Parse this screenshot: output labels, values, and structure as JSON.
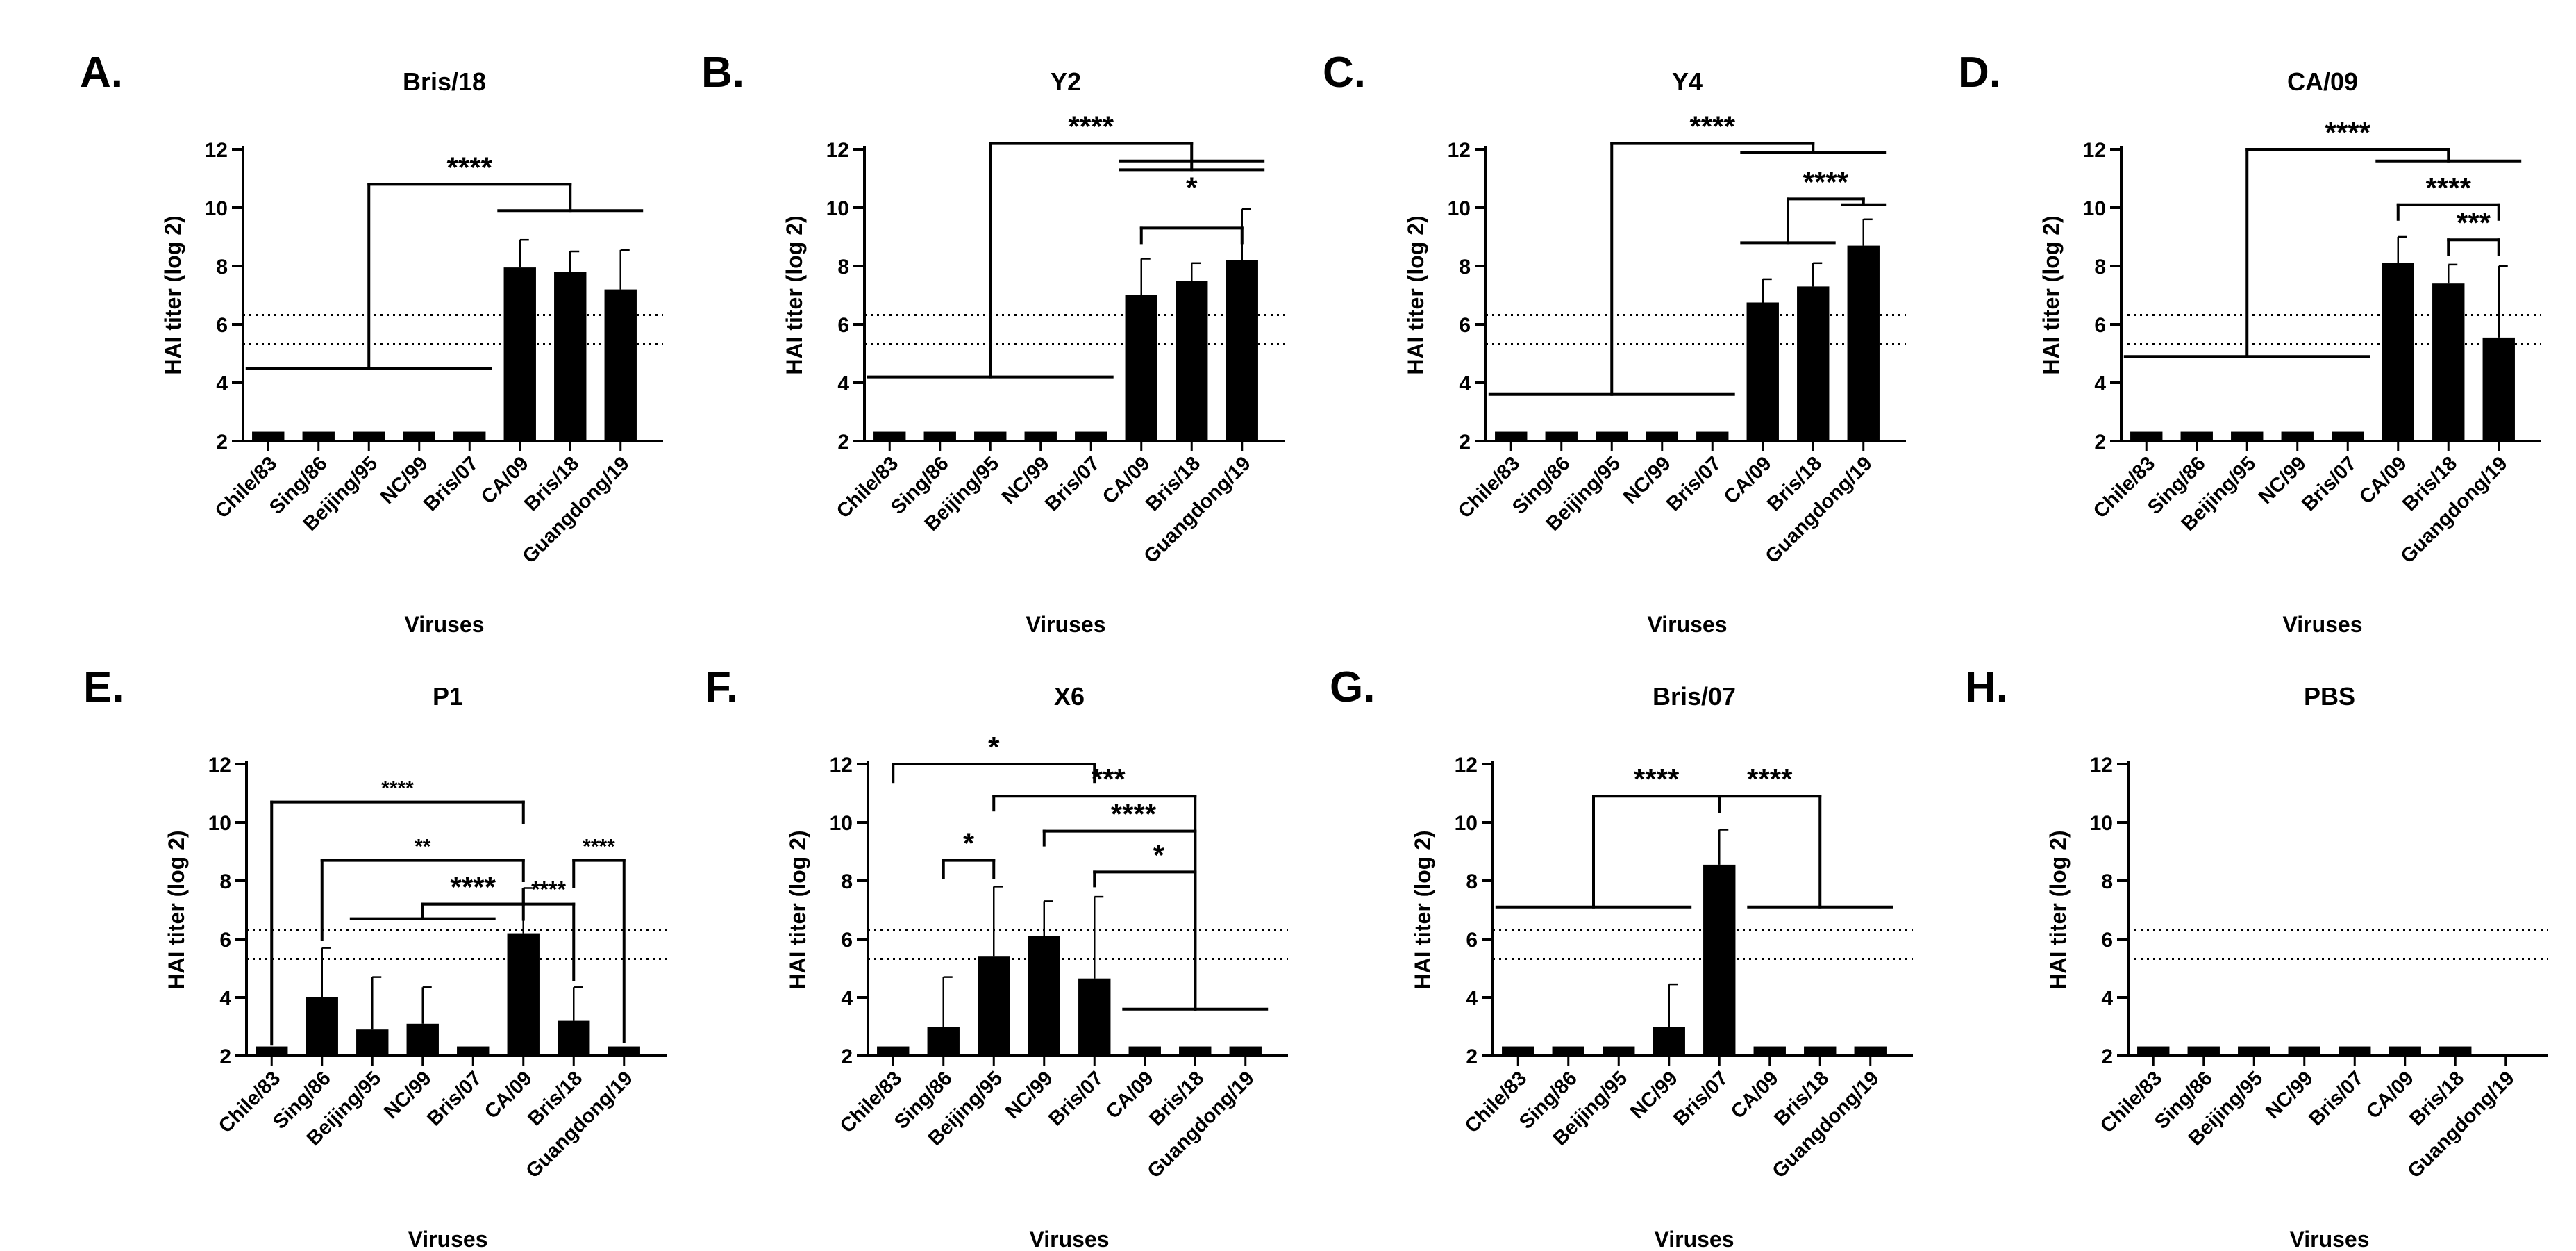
{
  "figure": {
    "threshold_lines_log2": [
      5.32,
      6.32
    ]
  },
  "chart_data": [
    {
      "type": "bar",
      "panel_label": "A.",
      "title": "Bris/18",
      "xlabel": "Viruses",
      "ylabel": "HAI titer (log 2)",
      "ylim": [
        2,
        12
      ],
      "yticks": [
        2,
        4,
        6,
        8,
        10,
        12
      ],
      "categories": [
        "Chile/83",
        "Sing/86",
        "Beijing/95",
        "NC/99",
        "Bris/07",
        "CA/09",
        "Bris/18",
        "Guangdong/19"
      ],
      "values": [
        2.32,
        2.32,
        2.32,
        2.32,
        2.32,
        7.95,
        7.8,
        7.2
      ],
      "errors": [
        0,
        0,
        0,
        0,
        0,
        0.95,
        0.7,
        1.35
      ],
      "significance": [
        {
          "type": "fork",
          "groups": [
            [
              0,
              1,
              2,
              3,
              4
            ],
            [
              5,
              6,
              7
            ]
          ],
          "group_levels": [
            4.5,
            9.9
          ],
          "top": 10.8,
          "label": "****",
          "label_size": 42
        }
      ]
    },
    {
      "type": "bar",
      "panel_label": "B.",
      "title": "Y2",
      "xlabel": "Viruses",
      "ylabel": "HAI titer (log 2)",
      "ylim": [
        2,
        12
      ],
      "yticks": [
        2,
        4,
        6,
        8,
        10,
        12
      ],
      "categories": [
        "Chile/83",
        "Sing/86",
        "Beijing/95",
        "NC/99",
        "Bris/07",
        "CA/09",
        "Bris/18",
        "Guangdong/19"
      ],
      "values": [
        2.32,
        2.32,
        2.32,
        2.32,
        2.32,
        7.0,
        7.5,
        8.2
      ],
      "errors": [
        0,
        0,
        0,
        0,
        0,
        1.25,
        0.6,
        1.75
      ],
      "significance": [
        {
          "type": "fork",
          "groups": [
            [
              0,
              1,
              2,
              3,
              4
            ],
            [
              5,
              6,
              7
            ]
          ],
          "group_levels": [
            4.2,
            11.3
          ],
          "top": 12.2,
          "label": "****",
          "label_size": 42
        },
        {
          "type": "span",
          "from": 5,
          "to": 7,
          "level": 11.6,
          "label": "*",
          "label_size": 42
        },
        {
          "type": "bracket",
          "from": 5,
          "to": 7,
          "level": 9.3,
          "label": "",
          "label_size": 40
        }
      ]
    },
    {
      "type": "bar",
      "panel_label": "C.",
      "title": "Y4",
      "xlabel": "Viruses",
      "ylabel": "HAI titer (log 2)",
      "ylim": [
        2,
        12
      ],
      "yticks": [
        2,
        4,
        6,
        8,
        10,
        12
      ],
      "categories": [
        "Chile/83",
        "Sing/86",
        "Beijing/95",
        "NC/99",
        "Bris/07",
        "CA/09",
        "Bris/18",
        "Guangdong/19"
      ],
      "values": [
        2.32,
        2.32,
        2.32,
        2.32,
        2.32,
        6.75,
        7.3,
        8.7
      ],
      "errors": [
        0,
        0,
        0,
        0,
        0,
        0.8,
        0.8,
        0.9
      ],
      "significance": [
        {
          "type": "fork",
          "groups": [
            [
              0,
              1,
              2,
              3,
              4
            ],
            [
              5,
              6,
              7
            ]
          ],
          "group_levels": [
            3.6,
            11.9
          ],
          "top": 12.2,
          "label": "****",
          "label_size": 42
        },
        {
          "type": "fork",
          "groups": [
            [
              5,
              6
            ],
            [
              7
            ]
          ],
          "group_levels": [
            8.8,
            10.1
          ],
          "top": 10.3,
          "label": "****",
          "label_size": 42
        }
      ]
    },
    {
      "type": "bar",
      "panel_label": "D.",
      "title": "CA/09",
      "xlabel": "Viruses",
      "ylabel": "HAI titer (log 2)",
      "ylim": [
        2,
        12
      ],
      "yticks": [
        2,
        4,
        6,
        8,
        10,
        12
      ],
      "categories": [
        "Chile/83",
        "Sing/86",
        "Beijing/95",
        "NC/99",
        "Bris/07",
        "CA/09",
        "Bris/18",
        "Guangdong/19"
      ],
      "values": [
        2.32,
        2.32,
        2.32,
        2.32,
        2.32,
        8.1,
        7.4,
        5.55
      ],
      "errors": [
        0,
        0,
        0,
        0,
        0,
        0.9,
        0.65,
        2.45
      ],
      "significance": [
        {
          "type": "fork",
          "groups": [
            [
              0,
              1,
              2,
              3,
              4
            ],
            [
              5,
              6,
              7
            ]
          ],
          "group_levels": [
            4.9,
            11.6
          ],
          "top": 12.0,
          "label": "****",
          "label_size": 42
        },
        {
          "type": "bracket",
          "from": 5,
          "to": 7,
          "level": 10.1,
          "label": "****",
          "label_size": 42
        },
        {
          "type": "bracket",
          "from": 6,
          "to": 7,
          "level": 8.9,
          "label": "***",
          "label_size": 42
        }
      ]
    },
    {
      "type": "bar",
      "panel_label": "E.",
      "title": "P1",
      "xlabel": "Viruses",
      "ylabel": "HAI titer (log 2)",
      "ylim": [
        2,
        12
      ],
      "yticks": [
        2,
        4,
        6,
        8,
        10,
        12
      ],
      "categories": [
        "Chile/83",
        "Sing/86",
        "Beijing/95",
        "NC/99",
        "Bris/07",
        "CA/09",
        "Bris/18",
        "Guangdong/19"
      ],
      "values": [
        2.32,
        4.0,
        2.9,
        3.1,
        2.32,
        6.2,
        3.2,
        2.32
      ],
      "errors": [
        0,
        1.7,
        1.8,
        1.25,
        0,
        1.55,
        1.15,
        0
      ],
      "significance": [
        {
          "type": "bracket",
          "from": 0,
          "to": 5,
          "level": 10.7,
          "label": "****",
          "label_size": 30,
          "drops": [
            2.4,
            10.0
          ]
        },
        {
          "type": "bracket",
          "from": 1,
          "to": 5,
          "level": 8.7,
          "label": "**",
          "label_size": 30,
          "drops": [
            6.0,
            8.0
          ]
        },
        {
          "type": "bracket",
          "from": 6,
          "to": 7,
          "level": 8.7,
          "label": "****",
          "label_size": 30,
          "drops": [
            7.8,
            2.5
          ],
          "label_at": "right"
        },
        {
          "type": "bracket",
          "from": 3,
          "to": 5,
          "level": 7.2,
          "label": "****",
          "label_size": 42,
          "drops": [
            6.8,
            7.7
          ]
        },
        {
          "type": "bracket",
          "from": 5,
          "to": 6,
          "level": 7.2,
          "label": "****",
          "label_size": 32,
          "drops": [
            7.7,
            4.6
          ]
        },
        {
          "type": "fork",
          "groups": [
            [
              2,
              3,
              4
            ]
          ],
          "group_levels": [
            6.7
          ],
          "top": 7.2,
          "label": "",
          "label_size": 30,
          "join_to": 5
        }
      ]
    },
    {
      "type": "bar",
      "panel_label": "F.",
      "title": "X6",
      "xlabel": "Viruses",
      "ylabel": "HAI titer (log 2)",
      "ylim": [
        2,
        12
      ],
      "yticks": [
        2,
        4,
        6,
        8,
        10,
        12
      ],
      "categories": [
        "Chile/83",
        "Sing/86",
        "Beijing/95",
        "NC/99",
        "Bris/07",
        "CA/09",
        "Bris/18",
        "Guangdong/19"
      ],
      "values": [
        2.32,
        3.0,
        5.4,
        6.1,
        4.65,
        2.32,
        2.32,
        2.32
      ],
      "errors": [
        0,
        1.7,
        2.4,
        1.2,
        2.8,
        0,
        0,
        0
      ],
      "significance": [
        {
          "type": "bracket",
          "from": 0,
          "to": 4,
          "level": 12.0,
          "label": "*",
          "label_size": 42,
          "drops": [
            11.4,
            11.4
          ]
        },
        {
          "type": "bracket",
          "from": 1,
          "to": 2,
          "level": 8.7,
          "label": "*",
          "label_size": 42,
          "drops": [
            8.1,
            8.1
          ]
        },
        {
          "type": "vspan",
          "at": 6,
          "from": 2,
          "to": 6,
          "level": 10.9,
          "label": "***",
          "label_size": 42
        },
        {
          "type": "vspan",
          "at": 6,
          "from": 3,
          "to": 6,
          "level": 9.7,
          "label": "****",
          "label_size": 42
        },
        {
          "type": "vspan",
          "at": 6,
          "from": 4,
          "to": 6,
          "level": 8.3,
          "label": "*",
          "label_size": 42
        },
        {
          "type": "hline",
          "from": 5,
          "to": 7,
          "level": 3.6
        }
      ]
    },
    {
      "type": "bar",
      "panel_label": "G.",
      "title": "Bris/07",
      "xlabel": "Viruses",
      "ylabel": "HAI titer (log 2)",
      "ylim": [
        2,
        12
      ],
      "yticks": [
        2,
        4,
        6,
        8,
        10,
        12
      ],
      "categories": [
        "Chile/83",
        "Sing/86",
        "Beijing/95",
        "NC/99",
        "Bris/07",
        "CA/09",
        "Bris/18",
        "Guangdong/19"
      ],
      "values": [
        2.32,
        2.32,
        2.32,
        3.0,
        8.55,
        2.32,
        2.32,
        2.32
      ],
      "errors": [
        0,
        0,
        0,
        1.45,
        1.2,
        0,
        0,
        0
      ],
      "significance": [
        {
          "type": "fork",
          "groups": [
            [
              0,
              1,
              2,
              3
            ]
          ],
          "group_levels": [
            7.1
          ],
          "top": 10.9,
          "label": "****",
          "label_size": 42,
          "join_to": 4,
          "label_side": "left"
        },
        {
          "type": "fork",
          "groups": [
            [
              5,
              6,
              7
            ]
          ],
          "group_levels": [
            7.1
          ],
          "top": 10.9,
          "label": "****",
          "label_size": 42,
          "join_to": 4,
          "label_side": "right"
        }
      ]
    },
    {
      "type": "bar",
      "panel_label": "H.",
      "title": "PBS",
      "xlabel": "Viruses",
      "ylabel": "HAI titer (log 2)",
      "ylim": [
        2,
        12
      ],
      "yticks": [
        2,
        4,
        6,
        8,
        10,
        12
      ],
      "categories": [
        "Chile/83",
        "Sing/86",
        "Beijing/95",
        "NC/99",
        "Bris/07",
        "CA/09",
        "Bris/18",
        "Guangdong/19"
      ],
      "values": [
        2.32,
        2.32,
        2.32,
        2.32,
        2.32,
        2.32,
        2.32,
        2.0
      ],
      "errors": [
        0,
        0,
        0,
        0,
        0,
        0,
        0,
        0
      ],
      "significance": []
    }
  ]
}
